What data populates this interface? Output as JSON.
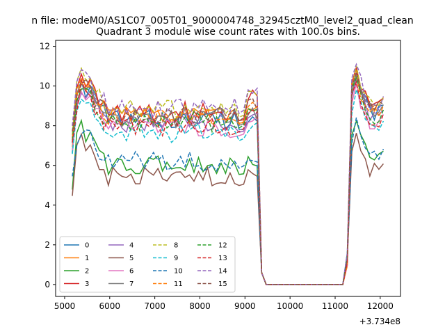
{
  "chart_data": {
    "type": "line",
    "suptitle": "n file: modeM0/AS1C07_005T01_9000004748_32945cztM0_level2_quad_clean",
    "title": "Quadrant 3 module wise count rates with 100.0s bins.",
    "xlabel": "",
    "ylabel": "",
    "offset_text": "+3.734e8",
    "xlim": [
      4800,
      12450
    ],
    "ylim": [
      -0.6,
      12.3
    ],
    "x_ticks": [
      5000,
      6000,
      7000,
      8000,
      9000,
      10000,
      11000,
      12000
    ],
    "x_tick_labels": [
      "5000",
      "6000",
      "7000",
      "8000",
      "9000",
      "10000",
      "11000",
      "12000"
    ],
    "y_ticks": [
      0,
      2,
      4,
      6,
      8,
      10,
      12
    ],
    "y_tick_labels": [
      "0",
      "2",
      "4",
      "6",
      "8",
      "10",
      "12"
    ],
    "grid": false,
    "legend_position": "lower-left",
    "legend_columns": 4,
    "x": {
      "start": 5170,
      "step": 100,
      "count": 70
    },
    "series": [
      {
        "name": "0",
        "color": "#1f77b4",
        "dash": "solid",
        "level": 8.3,
        "gap_level": 8.3
      },
      {
        "name": "1",
        "color": "#ff7f0e",
        "dash": "solid",
        "level": 8.6,
        "gap_level": 8.8
      },
      {
        "name": "2",
        "color": "#2ca02c",
        "dash": "solid",
        "level": 6.0,
        "gap_level": 6.2
      },
      {
        "name": "3",
        "color": "#d62728",
        "dash": "solid",
        "level": 8.7,
        "gap_level": 9.5
      },
      {
        "name": "4",
        "color": "#9467bd",
        "dash": "solid",
        "level": 8.1,
        "gap_level": 8.4
      },
      {
        "name": "5",
        "color": "#8c564b",
        "dash": "solid",
        "level": 5.4,
        "gap_level": 5.6
      },
      {
        "name": "6",
        "color": "#e377c2",
        "dash": "solid",
        "level": 7.9,
        "gap_level": 8.4
      },
      {
        "name": "7",
        "color": "#7f7f7f",
        "dash": "solid",
        "level": 8.4,
        "gap_level": 8.6
      },
      {
        "name": "8",
        "color": "#bcbd22",
        "dash": "dashed",
        "level": 8.8,
        "gap_level": 9.6
      },
      {
        "name": "9",
        "color": "#17becf",
        "dash": "dashed",
        "level": 7.6,
        "gap_level": 8.0
      },
      {
        "name": "10",
        "color": "#1f77b4",
        "dash": "dashed",
        "level": 6.2,
        "gap_level": 6.4
      },
      {
        "name": "11",
        "color": "#ff7f0e",
        "dash": "dashed",
        "level": 8.4,
        "gap_level": 8.9
      },
      {
        "name": "12",
        "color": "#2ca02c",
        "dash": "dashed",
        "level": 8.2,
        "gap_level": 8.6
      },
      {
        "name": "13",
        "color": "#d62728",
        "dash": "dashed",
        "level": 8.0,
        "gap_level": 8.8
      },
      {
        "name": "14",
        "color": "#9467bd",
        "dash": "dashed",
        "level": 8.9,
        "gap_level": 9.8
      },
      {
        "name": "15",
        "color": "#8c564b",
        "dash": "dashed",
        "level": 8.5,
        "gap_level": 9.1
      }
    ]
  }
}
